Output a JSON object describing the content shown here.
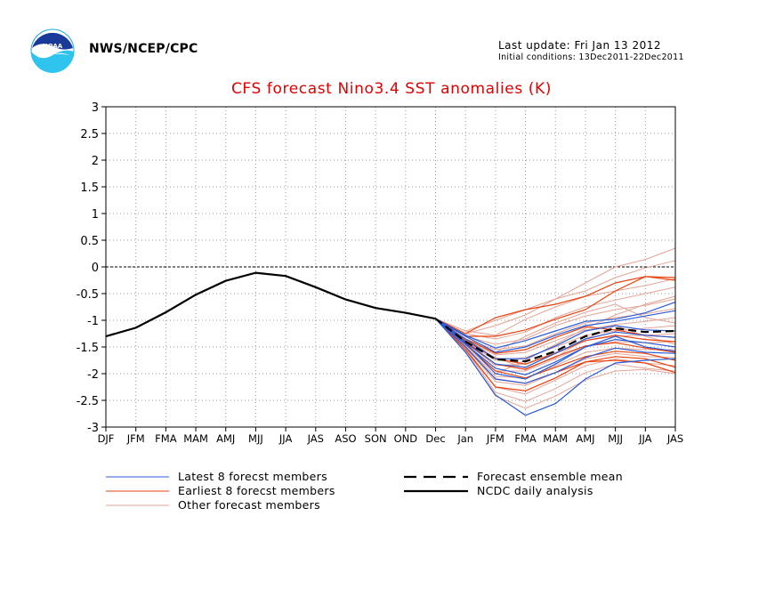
{
  "header": {
    "org": "NWS/NCEP/CPC",
    "last_update": "Last update: Fri Jan 13 2012",
    "initial_conditions": "Initial conditions: 13Dec2011-22Dec2011",
    "logo_text": "NOAA"
  },
  "colors": {
    "latest": "#2a5bd7",
    "earliest": "#e8410e",
    "other": "#e3a496",
    "analysis": "#000000",
    "title": "#e00000"
  },
  "chart_data": {
    "type": "line",
    "title": "CFS forecast Nino3.4 SST anomalies (K)",
    "categories": [
      "DJF",
      "JFM",
      "FMA",
      "MAM",
      "AMJ",
      "MJJ",
      "JJA",
      "JAS",
      "ASO",
      "SON",
      "OND",
      "Dec",
      "Jan",
      "JFM",
      "FMA",
      "MAM",
      "AMJ",
      "MJJ",
      "JJA",
      "JAS"
    ],
    "ylim": [
      -3,
      3
    ],
    "yticks": [
      -3,
      -2.5,
      -2,
      -1.5,
      -1,
      -0.5,
      0,
      0.5,
      1,
      1.5,
      2,
      2.5,
      3
    ],
    "grid": true,
    "legend_position": "bottom",
    "legend": [
      {
        "key": "latest",
        "label": "Latest 8 forecst members",
        "style": "solid"
      },
      {
        "key": "earliest",
        "label": "Earliest 8 forecst members",
        "style": "solid"
      },
      {
        "key": "other",
        "label": "Other forecast members",
        "style": "solid"
      },
      {
        "key": "mean",
        "label": "Forecast ensemble mean",
        "style": "dashed"
      },
      {
        "key": "analysis",
        "label": "NCDC daily analysis",
        "style": "solid"
      }
    ],
    "analysis": {
      "x": [
        "DJF",
        "JFM",
        "FMA",
        "MAM",
        "AMJ",
        "MJJ",
        "JJA",
        "JAS",
        "ASO",
        "SON",
        "OND",
        "Dec"
      ],
      "values": [
        -1.3,
        -1.14,
        -0.85,
        -0.52,
        -0.26,
        -0.11,
        -0.17,
        -0.38,
        -0.61,
        -0.77,
        -0.86,
        -0.97
      ]
    },
    "ensemble_mean": {
      "x": [
        "Dec",
        "Jan",
        "JFM",
        "FMA",
        "MAM",
        "AMJ",
        "MJJ",
        "JJA",
        "JAS"
      ],
      "values": [
        -0.97,
        -1.4,
        -1.73,
        -1.77,
        -1.58,
        -1.3,
        -1.15,
        -1.22,
        -1.2
      ]
    },
    "forecast_members": [
      {
        "group": "latest",
        "values": [
          -0.97,
          -1.6,
          -2.4,
          -2.78,
          -2.56,
          -2.1,
          -1.8,
          -1.75,
          -1.72
        ]
      },
      {
        "group": "latest",
        "values": [
          -0.97,
          -1.5,
          -2.1,
          -2.18,
          -1.98,
          -1.7,
          -1.52,
          -1.6,
          -1.62
        ]
      },
      {
        "group": "latest",
        "values": [
          -0.97,
          -1.45,
          -1.9,
          -2.02,
          -1.78,
          -1.5,
          -1.36,
          -1.42,
          -1.5
        ]
      },
      {
        "group": "latest",
        "values": [
          -0.97,
          -1.4,
          -1.82,
          -1.88,
          -1.62,
          -1.35,
          -1.22,
          -1.28,
          -1.32
        ]
      },
      {
        "group": "latest",
        "values": [
          -0.97,
          -1.35,
          -1.72,
          -1.72,
          -1.48,
          -1.2,
          -1.1,
          -1.18,
          -1.2
        ]
      },
      {
        "group": "latest",
        "values": [
          -0.97,
          -1.3,
          -1.6,
          -1.5,
          -1.28,
          -1.1,
          -1.02,
          -0.92,
          -0.82
        ]
      },
      {
        "group": "latest",
        "values": [
          -0.97,
          -1.28,
          -1.52,
          -1.38,
          -1.2,
          -1.02,
          -0.98,
          -0.86,
          -0.66
        ]
      },
      {
        "group": "latest",
        "values": [
          -0.97,
          -1.42,
          -2.0,
          -2.1,
          -1.82,
          -1.5,
          -1.3,
          -1.5,
          -1.58
        ]
      },
      {
        "group": "earliest",
        "values": [
          -0.97,
          -1.55,
          -2.25,
          -2.32,
          -2.08,
          -1.78,
          -1.75,
          -1.8,
          -1.98
        ]
      },
      {
        "group": "earliest",
        "values": [
          -0.97,
          -1.5,
          -2.1,
          -2.18,
          -1.98,
          -1.78,
          -1.68,
          -1.72,
          -1.88
        ]
      },
      {
        "group": "earliest",
        "values": [
          -0.97,
          -1.45,
          -1.95,
          -2.08,
          -1.88,
          -1.68,
          -1.58,
          -1.62,
          -1.75
        ]
      },
      {
        "group": "earliest",
        "values": [
          -0.97,
          -1.42,
          -1.82,
          -1.92,
          -1.68,
          -1.48,
          -1.42,
          -1.52,
          -1.6
        ]
      },
      {
        "group": "earliest",
        "values": [
          -0.97,
          -1.38,
          -1.72,
          -1.82,
          -1.62,
          -1.38,
          -1.28,
          -1.36,
          -1.4
        ]
      },
      {
        "group": "earliest",
        "values": [
          -0.97,
          -1.35,
          -1.62,
          -1.55,
          -1.32,
          -1.12,
          -1.18,
          -1.28,
          -1.32
        ]
      },
      {
        "group": "earliest",
        "values": [
          -0.97,
          -1.25,
          -0.95,
          -0.8,
          -0.7,
          -0.55,
          -0.3,
          -0.18,
          -0.2
        ]
      },
      {
        "group": "earliest",
        "values": [
          -0.97,
          -1.3,
          -1.3,
          -1.18,
          -0.98,
          -0.8,
          -0.45,
          -0.18,
          -0.25
        ]
      },
      {
        "group": "other",
        "values": [
          -0.97,
          -1.2,
          -1.0,
          -0.8,
          -0.6,
          -0.3,
          0.0,
          0.14,
          0.35
        ]
      },
      {
        "group": "other",
        "values": [
          -0.97,
          -1.25,
          -1.1,
          -0.9,
          -0.6,
          -0.45,
          -0.2,
          -0.02,
          0.12
        ]
      },
      {
        "group": "other",
        "values": [
          -0.97,
          -1.2,
          -1.28,
          -0.98,
          -0.75,
          -0.55,
          -0.45,
          -0.35,
          -0.22
        ]
      },
      {
        "group": "other",
        "values": [
          -0.97,
          -1.25,
          -1.35,
          -1.22,
          -0.95,
          -0.75,
          -0.62,
          -0.5,
          -0.38
        ]
      },
      {
        "group": "other",
        "values": [
          -0.97,
          -1.3,
          -1.45,
          -1.35,
          -1.1,
          -0.92,
          -0.8,
          -0.72,
          -0.6
        ]
      },
      {
        "group": "other",
        "values": [
          -0.97,
          -1.35,
          -1.55,
          -1.48,
          -1.25,
          -1.05,
          -0.95,
          -0.88,
          -0.78
        ]
      },
      {
        "group": "other",
        "values": [
          -0.97,
          -1.38,
          -1.65,
          -1.6,
          -1.38,
          -1.18,
          -1.08,
          -1.02,
          -0.95
        ]
      },
      {
        "group": "other",
        "values": [
          -0.97,
          -1.4,
          -1.75,
          -1.7,
          -1.5,
          -1.28,
          -1.2,
          -1.15,
          -1.1
        ]
      },
      {
        "group": "other",
        "values": [
          -0.97,
          -1.42,
          -1.85,
          -1.82,
          -1.6,
          -1.38,
          -1.3,
          -1.28,
          -1.25
        ]
      },
      {
        "group": "other",
        "values": [
          -0.97,
          -1.45,
          -1.95,
          -1.95,
          -1.72,
          -1.48,
          -1.4,
          -1.42,
          -1.4
        ]
      },
      {
        "group": "other",
        "values": [
          -0.97,
          -1.48,
          -2.05,
          -2.08,
          -1.85,
          -1.6,
          -1.52,
          -1.55,
          -1.55
        ]
      },
      {
        "group": "other",
        "values": [
          -0.97,
          -1.5,
          -2.15,
          -2.22,
          -1.98,
          -1.72,
          -1.62,
          -1.68,
          -1.7
        ]
      },
      {
        "group": "other",
        "values": [
          -0.97,
          -1.52,
          -2.25,
          -2.38,
          -2.12,
          -1.85,
          -1.72,
          -1.8,
          -1.85
        ]
      },
      {
        "group": "other",
        "values": [
          -0.97,
          -1.55,
          -2.35,
          -2.52,
          -2.28,
          -1.98,
          -1.82,
          -1.9,
          -1.95
        ]
      },
      {
        "group": "other",
        "values": [
          -0.97,
          -1.58,
          -2.42,
          -2.65,
          -2.42,
          -2.12,
          -1.95,
          -1.92,
          -2.0
        ]
      },
      {
        "group": "other",
        "values": [
          -0.97,
          -1.45,
          -2.0,
          -1.75,
          -1.45,
          -1.15,
          -0.9,
          -0.7,
          -0.55
        ]
      },
      {
        "group": "other",
        "values": [
          -0.97,
          -1.35,
          -1.6,
          -1.3,
          -1.05,
          -0.85,
          -0.7,
          -0.95,
          -1.05
        ]
      },
      {
        "group": "other",
        "values": [
          -0.97,
          -1.4,
          -1.7,
          -1.9,
          -1.7,
          -1.35,
          -1.1,
          -1.3,
          -1.45
        ]
      }
    ]
  }
}
